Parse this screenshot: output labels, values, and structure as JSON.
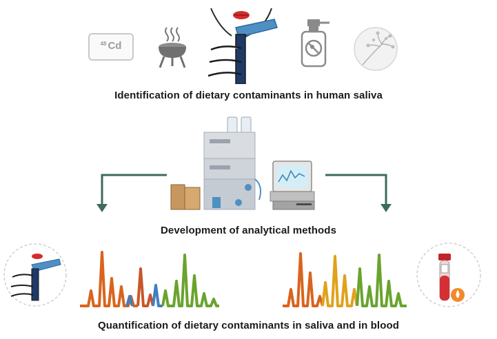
{
  "top": {
    "icons": [
      {
        "name": "cadmium-element-icon",
        "element_symbol": "Cd",
        "atomic_number": "48"
      },
      {
        "name": "grill-icon"
      },
      {
        "name": "saliva-collection-icon"
      },
      {
        "name": "pesticide-sprayer-icon"
      },
      {
        "name": "mold-spore-icon"
      }
    ],
    "caption": "Identification of dietary contaminants in human saliva"
  },
  "middle": {
    "instrument": "lc-ms-instrument-icon",
    "caption": "Development of analytical methods"
  },
  "bottom": {
    "left_icon": "saliva-collection-icon",
    "right_icon": "blood-tube-icon",
    "caption": "Quantification of dietary contaminants in saliva and in blood"
  },
  "colors": {
    "arrow": "#3d6b5e",
    "chromatogram": [
      "#d9641e",
      "#c9552a",
      "#3f7fbf",
      "#6aa32e",
      "#e0a21c"
    ],
    "caption_text": "#1a1a1a"
  }
}
